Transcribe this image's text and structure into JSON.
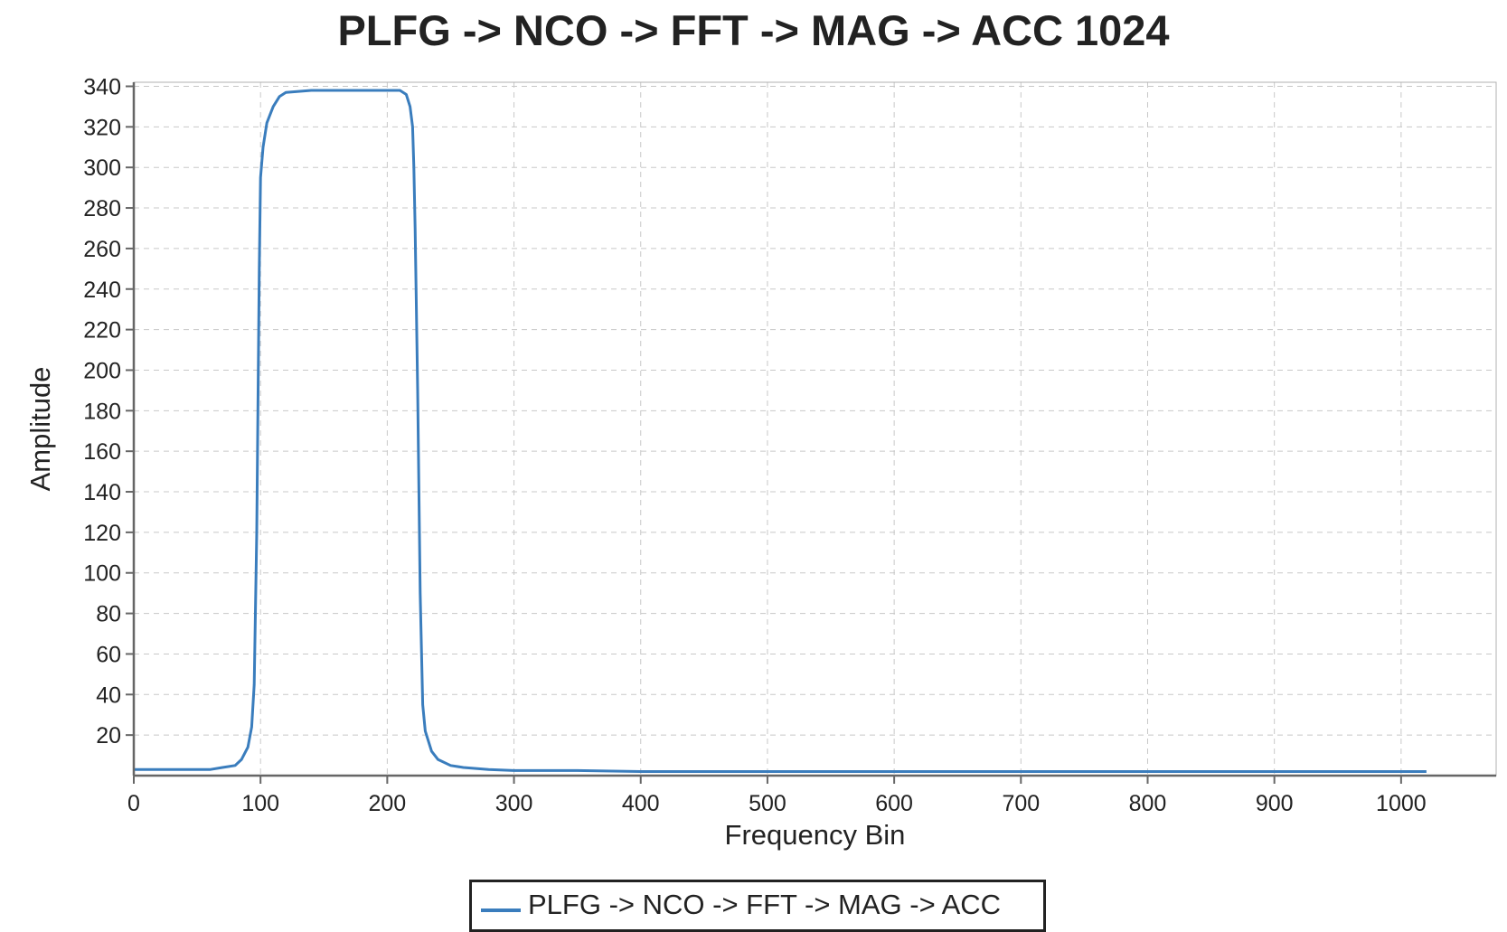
{
  "chart_data": {
    "type": "line",
    "title": "PLFG -> NCO -> FFT -> MAG -> ACC 1024",
    "xlabel": "Frequency Bin",
    "ylabel": "Amplitude",
    "xlim": [
      0,
      1075
    ],
    "ylim": [
      0,
      342
    ],
    "xticks": [
      0,
      100,
      200,
      300,
      400,
      500,
      600,
      700,
      800,
      900,
      1000
    ],
    "yticks": [
      20,
      40,
      60,
      80,
      100,
      120,
      140,
      160,
      180,
      200,
      220,
      240,
      260,
      280,
      300,
      320,
      340
    ],
    "grid": true,
    "legend_position": "bottom-center",
    "series": [
      {
        "name": "PLFG -> NCO -> FFT -> MAG -> ACC",
        "color": "#3a7dbd",
        "x": [
          0,
          20,
          40,
          60,
          70,
          80,
          85,
          90,
          93,
          95,
          97,
          99,
          100,
          102,
          105,
          110,
          115,
          120,
          140,
          160,
          180,
          200,
          210,
          215,
          218,
          220,
          221,
          222,
          224,
          226,
          228,
          230,
          235,
          240,
          250,
          260,
          280,
          300,
          350,
          400,
          500,
          600,
          700,
          800,
          900,
          1000,
          1020
        ],
        "y": [
          3,
          3,
          3,
          3,
          4,
          5,
          8,
          14,
          24,
          45,
          120,
          250,
          295,
          310,
          322,
          330,
          335,
          337,
          338,
          338,
          338,
          338,
          338,
          336,
          330,
          320,
          300,
          270,
          190,
          90,
          35,
          22,
          12,
          8,
          5,
          4,
          3,
          2.5,
          2.5,
          2,
          2,
          2,
          2,
          2,
          2,
          2,
          2
        ]
      }
    ]
  }
}
